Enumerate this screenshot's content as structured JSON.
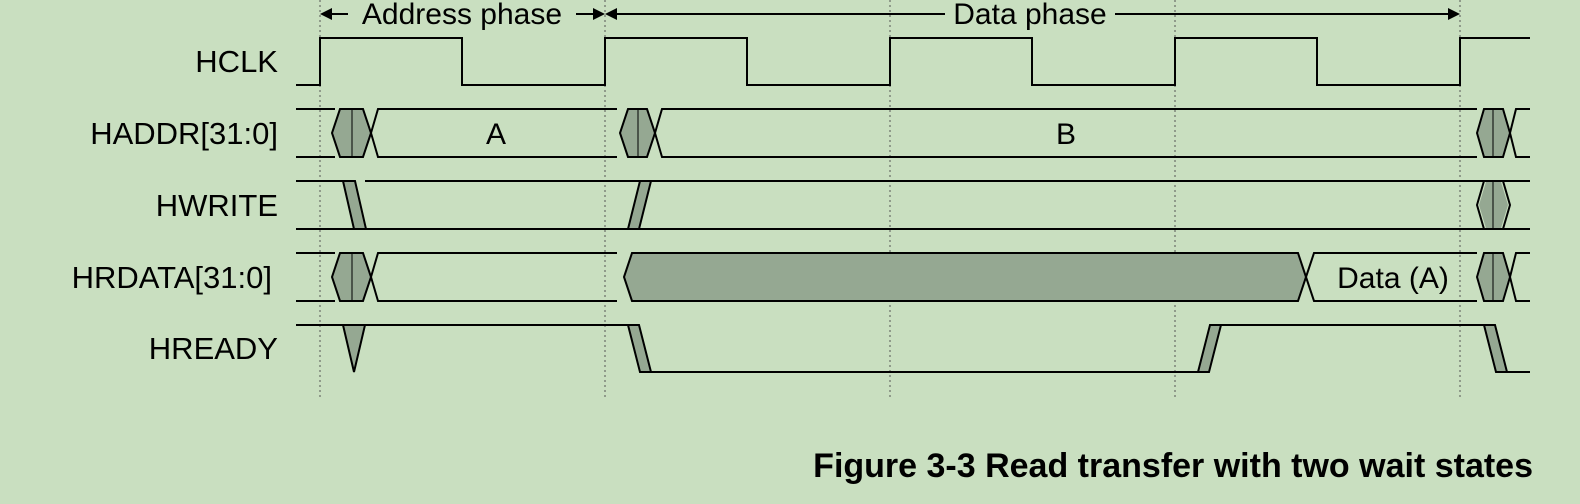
{
  "phases": {
    "address": "Address phase",
    "data": "Data phase"
  },
  "signals": [
    {
      "id": "hclk",
      "label": "HCLK"
    },
    {
      "id": "haddr",
      "label": "HADDR[31:0]",
      "values": [
        "A",
        "B"
      ]
    },
    {
      "id": "hwrite",
      "label": "HWRITE"
    },
    {
      "id": "hrdata",
      "label": "HRDATA[31:0]",
      "values": [
        "Data (A)"
      ]
    },
    {
      "id": "hready",
      "label": "HREADY"
    }
  ],
  "caption": "Figure 3-3 Read transfer with two wait states",
  "colors": {
    "background": "#c9dfc0",
    "transition_fill": "#95a892",
    "line": "#000000"
  }
}
